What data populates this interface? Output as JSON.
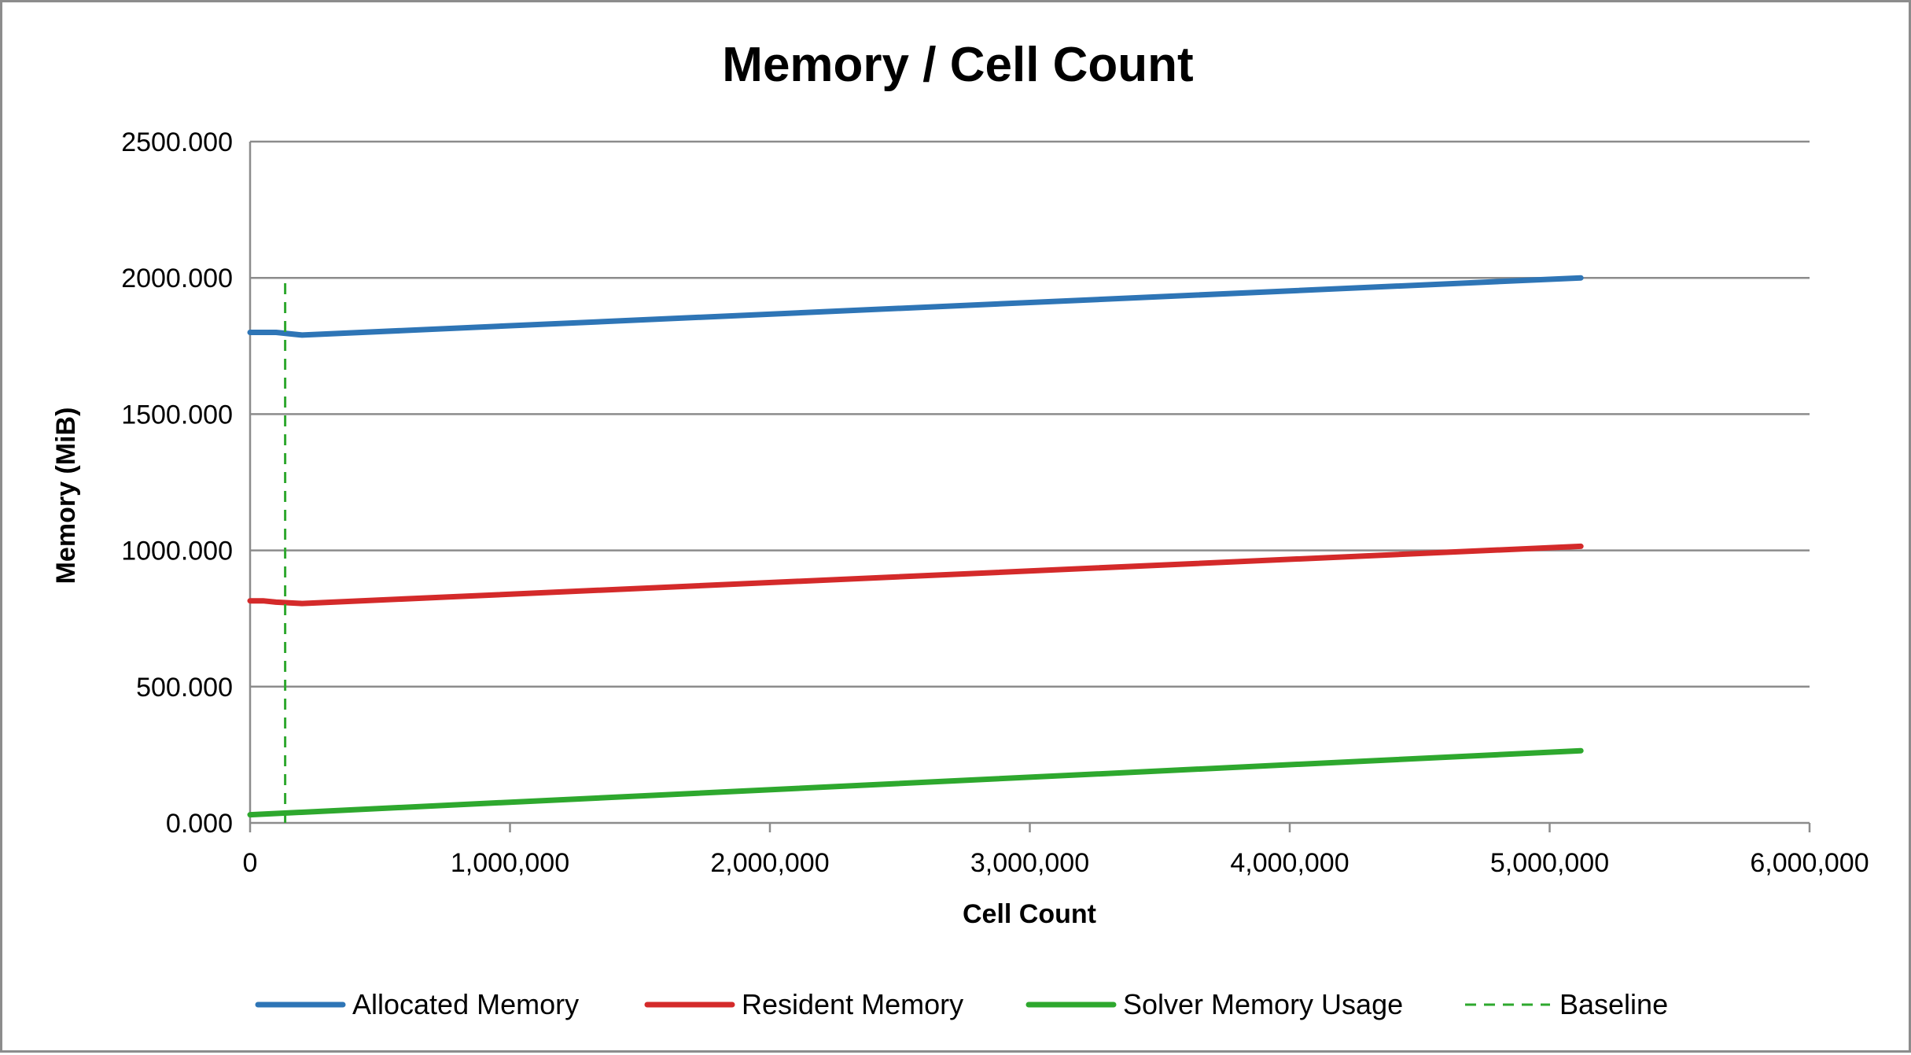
{
  "chart_data": {
    "type": "line",
    "title": "Memory / Cell Count",
    "xlabel": "Cell Count",
    "ylabel": "Memory (MiB)",
    "xlim": [
      0,
      6000000
    ],
    "ylim": [
      0,
      2500
    ],
    "x_ticks": [
      0,
      1000000,
      2000000,
      3000000,
      4000000,
      5000000,
      6000000
    ],
    "x_tick_labels": [
      "0",
      "1,000,000",
      "2,000,000",
      "3,000,000",
      "4,000,000",
      "5,000,000",
      "6,000,000"
    ],
    "y_ticks": [
      0,
      500,
      1000,
      1500,
      2000,
      2500
    ],
    "y_tick_labels": [
      "0.000",
      "500.000",
      "1000.000",
      "1500.000",
      "2000.000",
      "2500.000"
    ],
    "grid": "horizontal",
    "legend_position": "bottom",
    "series": [
      {
        "name": "Allocated Memory",
        "color": "#2e75b6",
        "style": "solid",
        "x": [
          0,
          100000,
          200000,
          5120000
        ],
        "y": [
          1800,
          1800,
          1790,
          2000
        ]
      },
      {
        "name": "Resident Memory",
        "color": "#d42a2a",
        "style": "solid",
        "x": [
          0,
          50000,
          100000,
          200000,
          5120000
        ],
        "y": [
          815,
          815,
          810,
          805,
          1015
        ]
      },
      {
        "name": "Solver Memory Usage",
        "color": "#2ea82e",
        "style": "solid",
        "x": [
          0,
          5120000
        ],
        "y": [
          30,
          265
        ]
      },
      {
        "name": "Baseline",
        "color": "#2ea82e",
        "style": "dashed",
        "x": [
          135000,
          135000
        ],
        "y": [
          0,
          2000
        ]
      }
    ]
  }
}
